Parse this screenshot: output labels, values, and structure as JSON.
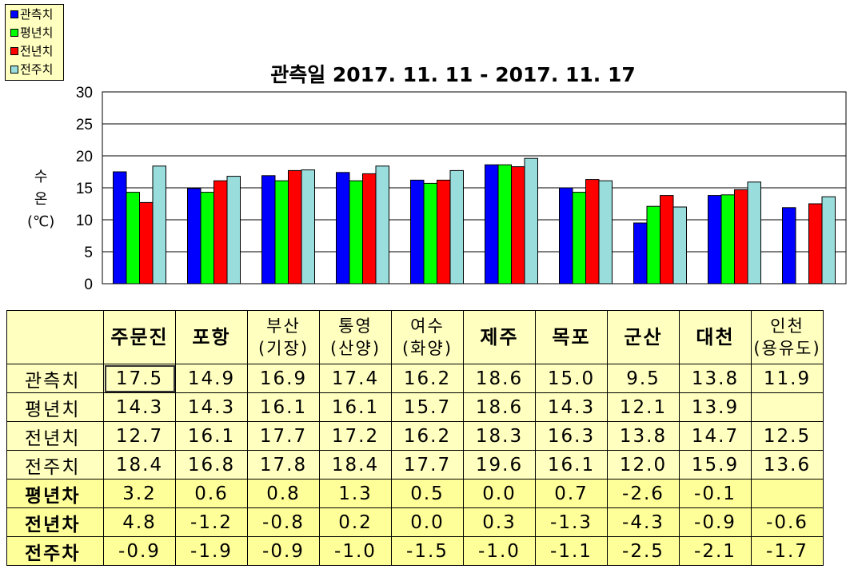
{
  "chart_data": {
    "type": "bar",
    "title": "관측일 2017. 11. 11 - 2017. 11. 17",
    "ylabel": [
      "수",
      "온",
      "(℃)"
    ],
    "ylim": [
      0,
      30
    ],
    "yticks": [
      0,
      5,
      10,
      15,
      20,
      25,
      30
    ],
    "grid": true,
    "legend_position": "top-left",
    "categories": [
      "주문진",
      "포항",
      "부산(기장)",
      "통영(산양)",
      "여수(화양)",
      "제주",
      "목포",
      "군산",
      "대천",
      "인천(용유도)"
    ],
    "series": [
      {
        "name": "관측치",
        "color": "#0000ff",
        "values": [
          17.5,
          14.9,
          16.9,
          17.4,
          16.2,
          18.6,
          15.0,
          9.5,
          13.8,
          11.9
        ]
      },
      {
        "name": "평년치",
        "color": "#00ff00",
        "values": [
          14.3,
          14.3,
          16.1,
          16.1,
          15.7,
          18.6,
          14.3,
          12.1,
          13.9,
          null
        ]
      },
      {
        "name": "전년치",
        "color": "#ff0000",
        "values": [
          12.7,
          16.1,
          17.7,
          17.2,
          16.2,
          18.3,
          16.3,
          13.8,
          14.7,
          12.5
        ]
      },
      {
        "name": "전주치",
        "color": "#99dddd",
        "values": [
          18.4,
          16.8,
          17.8,
          18.4,
          17.7,
          19.6,
          16.1,
          12.0,
          15.9,
          13.6
        ]
      }
    ]
  },
  "table": {
    "headers": [
      [
        "주문진"
      ],
      [
        "포항"
      ],
      [
        "부산",
        "(기장)"
      ],
      [
        "통영",
        "(산양)"
      ],
      [
        "여수",
        "(화양)"
      ],
      [
        "제주"
      ],
      [
        "목포"
      ],
      [
        "군산"
      ],
      [
        "대천"
      ],
      [
        "인천",
        "(용유도)"
      ]
    ],
    "rows": [
      {
        "label": "관측치",
        "values": [
          "17.5",
          "14.9",
          "16.9",
          "17.4",
          "16.2",
          "18.6",
          "15.0",
          "9.5",
          "13.8",
          "11.9"
        ]
      },
      {
        "label": "평년치",
        "values": [
          "14.3",
          "14.3",
          "16.1",
          "16.1",
          "15.7",
          "18.6",
          "14.3",
          "12.1",
          "13.9",
          ""
        ]
      },
      {
        "label": "전년치",
        "values": [
          "12.7",
          "16.1",
          "17.7",
          "17.2",
          "16.2",
          "18.3",
          "16.3",
          "13.8",
          "14.7",
          "12.5"
        ]
      },
      {
        "label": "전주치",
        "values": [
          "18.4",
          "16.8",
          "17.8",
          "18.4",
          "17.7",
          "19.6",
          "16.1",
          "12.0",
          "15.9",
          "13.6"
        ]
      },
      {
        "label": "평년차",
        "values": [
          "3.2",
          "0.6",
          "0.8",
          "1.3",
          "0.5",
          "0.0",
          "0.7",
          "-2.6",
          "-0.1",
          ""
        ]
      },
      {
        "label": "전년차",
        "values": [
          "4.8",
          "-1.2",
          "-0.8",
          "0.2",
          "0.0",
          "0.3",
          "-1.3",
          "-4.3",
          "-0.9",
          "-0.6"
        ]
      },
      {
        "label": "전주차",
        "values": [
          "-0.9",
          "-1.9",
          "-0.9",
          "-1.0",
          "-1.5",
          "-1.0",
          "-1.1",
          "-2.5",
          "-2.1",
          "-1.7"
        ]
      }
    ]
  }
}
